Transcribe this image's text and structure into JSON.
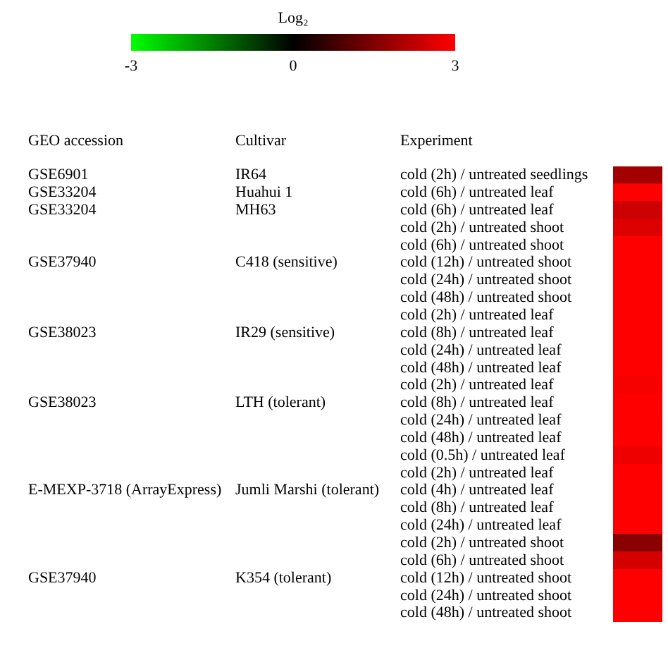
{
  "chart_data": {
    "type": "heatmap",
    "clabel": "Log₂",
    "clim": [
      -3,
      3
    ],
    "cticks": [
      -3,
      0,
      3
    ],
    "categories": [
      null
    ],
    "y_categories": [
      "cold (2h) / untreated seedlings",
      "cold (6h) / untreated leaf",
      "cold (6h) / untreated leaf",
      "cold (2h) / untreated shoot",
      "cold (6h) / untreated shoot",
      "cold (12h) / untreated shoot",
      "cold (24h) / untreated shoot",
      "cold (48h) / untreated shoot",
      "cold (2h) / untreated leaf",
      "cold (8h) / untreated leaf",
      "cold (24h) / untreated leaf",
      "cold (48h) / untreated leaf",
      "cold (2h) / untreated leaf",
      "cold (8h) / untreated leaf",
      "cold (24h) / untreated leaf",
      "cold (48h) / untreated leaf",
      "cold (0.5h) / untreated leaf",
      "cold (2h) / untreated leaf",
      "cold (4h) / untreated leaf",
      "cold (8h) / untreated leaf",
      "cold (24h) / untreated leaf",
      "cold (2h) / untreated shoot",
      "cold (6h) / untreated shoot",
      "cold (12h) / untreated shoot",
      "cold (24h) / untreated shoot",
      "cold (48h) / untreated shoot"
    ],
    "y2_categories": [
      "IR64",
      "Huahui 1",
      "MH63",
      null,
      null,
      "C418 (sensitive)",
      null,
      null,
      null,
      "IR29 (sensitive)",
      null,
      null,
      null,
      "LTH (tolerant)",
      null,
      null,
      null,
      null,
      "Jumli Marshi (tolerant)",
      null,
      null,
      null,
      null,
      "K354 (tolerant)",
      null,
      null
    ],
    "cells": [
      [
        1.9
      ],
      [
        3
      ],
      [
        2.4
      ],
      [
        2.6
      ],
      [
        3
      ],
      [
        3
      ],
      [
        3
      ],
      [
        3
      ],
      [
        3
      ],
      [
        3
      ],
      [
        3
      ],
      [
        3
      ],
      [
        2.9
      ],
      [
        3
      ],
      [
        3
      ],
      [
        3
      ],
      [
        2.8
      ],
      [
        3
      ],
      [
        3
      ],
      [
        3
      ],
      [
        3
      ],
      [
        1.6
      ],
      [
        2.5
      ],
      [
        3
      ],
      [
        3
      ],
      [
        3
      ]
    ],
    "annotations": [
      "GEO accession",
      "Cultivar",
      "Experiment",
      "GSE6901",
      "GSE33204",
      "GSE33204",
      "GSE37940",
      "GSE38023",
      "GSE38023",
      "E-MEXP-3718 (ArrayExpress)",
      "GSE37940"
    ]
  }
}
